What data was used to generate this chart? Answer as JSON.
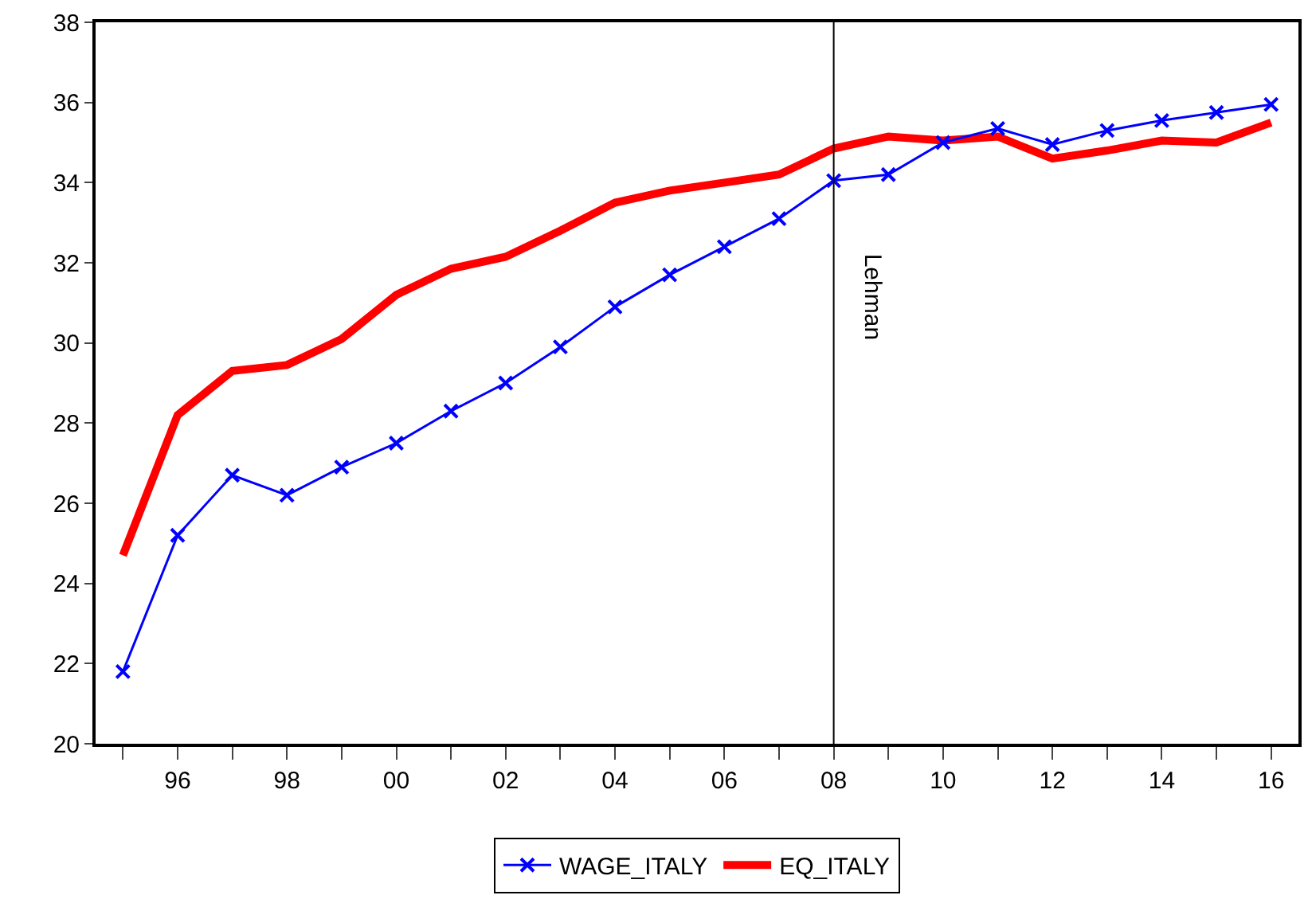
{
  "chart_data": {
    "type": "line",
    "x": [
      1995,
      1996,
      1997,
      1998,
      1999,
      2000,
      2001,
      2002,
      2003,
      2004,
      2005,
      2006,
      2007,
      2008,
      2009,
      2010,
      2011,
      2012,
      2013,
      2014,
      2015,
      2016
    ],
    "series": [
      {
        "name": "WAGE_ITALY",
        "color": "#0000ff",
        "marker": "cross",
        "line_style": "solid",
        "values": [
          21.8,
          25.2,
          26.7,
          26.2,
          26.9,
          27.5,
          28.3,
          29.0,
          29.9,
          30.9,
          31.7,
          32.4,
          33.1,
          34.05,
          34.2,
          35.0,
          35.35,
          34.95,
          35.3,
          35.55,
          35.75,
          35.95
        ]
      },
      {
        "name": "EQ_ITALY",
        "color": "#ff0000",
        "marker": "none",
        "line_style": "solid",
        "values": [
          24.7,
          28.2,
          29.3,
          29.45,
          30.1,
          31.2,
          31.85,
          32.15,
          32.8,
          33.5,
          33.8,
          34.0,
          34.2,
          34.85,
          35.15,
          35.05,
          35.15,
          34.6,
          34.8,
          35.05,
          35.0,
          35.5
        ]
      }
    ],
    "xlim": [
      1994.5,
      2016.5
    ],
    "xticks": [
      {
        "value": 1995,
        "label": null
      },
      {
        "value": 1996,
        "label": "96"
      },
      {
        "value": 1997,
        "label": null
      },
      {
        "value": 1998,
        "label": "98"
      },
      {
        "value": 1999,
        "label": null
      },
      {
        "value": 2000,
        "label": "00"
      },
      {
        "value": 2001,
        "label": null
      },
      {
        "value": 2002,
        "label": "02"
      },
      {
        "value": 2003,
        "label": null
      },
      {
        "value": 2004,
        "label": "04"
      },
      {
        "value": 2005,
        "label": null
      },
      {
        "value": 2006,
        "label": "06"
      },
      {
        "value": 2007,
        "label": null
      },
      {
        "value": 2008,
        "label": "08"
      },
      {
        "value": 2009,
        "label": null
      },
      {
        "value": 2010,
        "label": "10"
      },
      {
        "value": 2011,
        "label": null
      },
      {
        "value": 2012,
        "label": "12"
      },
      {
        "value": 2013,
        "label": null
      },
      {
        "value": 2014,
        "label": "14"
      },
      {
        "value": 2015,
        "label": null
      },
      {
        "value": 2016,
        "label": "16"
      }
    ],
    "ylim": [
      20,
      38
    ],
    "yticks": [
      20,
      22,
      24,
      26,
      28,
      30,
      32,
      34,
      36,
      38
    ],
    "ref_lines": [
      {
        "axis": "x",
        "value": 2008,
        "label": "Lehman",
        "color": "#000000",
        "line_style": "solid"
      }
    ],
    "grid": false,
    "legend": "bottom"
  }
}
